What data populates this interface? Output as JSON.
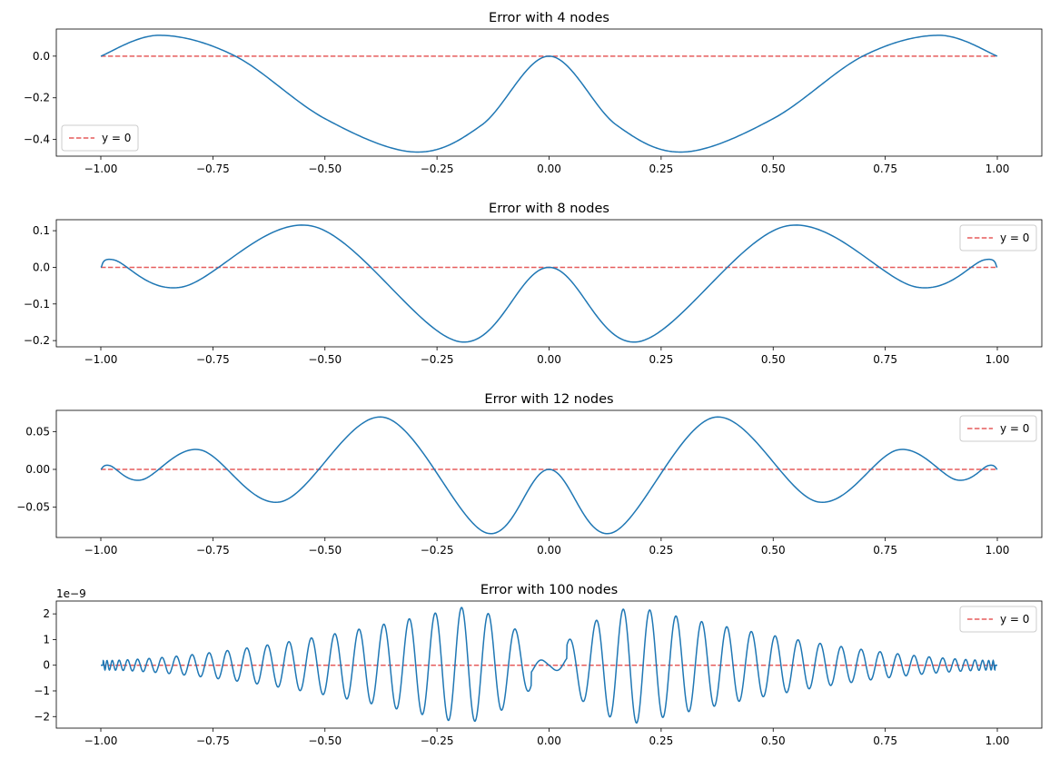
{
  "colors": {
    "error_line": "#1f77b4",
    "zero_line": "#e65c5c",
    "frame": "#000000",
    "legend_border": "#cccccc"
  },
  "legend_label": "y = 0",
  "chart_data": [
    {
      "type": "line",
      "title": "Error with 4 nodes",
      "n_nodes": 4,
      "xlim": [
        -1.0,
        1.0
      ],
      "ylim": [
        -0.48,
        0.13
      ],
      "xticks": [
        -1.0,
        -0.75,
        -0.5,
        -0.25,
        0.0,
        0.25,
        0.5,
        0.75,
        1.0
      ],
      "xticklabels": [
        "−1.00",
        "−0.75",
        "−0.50",
        "−0.25",
        "0.00",
        "0.25",
        "0.50",
        "0.75",
        "1.00"
      ],
      "yticks": [
        0.0,
        -0.2,
        -0.4
      ],
      "yticklabels": [
        "0.0",
        "−0.2",
        "−0.4"
      ],
      "offset_text": "",
      "series": [
        {
          "values_at_x": {
            "x": [
              -1.0,
              -0.87,
              -0.7,
              -0.5,
              -0.3,
              -0.15,
              0.0,
              0.15,
              0.3,
              0.5,
              0.7,
              0.87,
              1.0
            ],
            "y": [
              0.0,
              0.1,
              0.0,
              -0.3,
              -0.46,
              -0.33,
              0.0,
              -0.33,
              -0.46,
              -0.3,
              0.0,
              0.1,
              0.0
            ]
          }
        },
        {
          "name": "y = 0",
          "x": [
            -1.0,
            1.0
          ],
          "y": [
            0,
            0
          ],
          "style": "dashed"
        }
      ],
      "legend": "lower-left"
    },
    {
      "type": "line",
      "title": "Error with 8 nodes",
      "n_nodes": 8,
      "xlim": [
        -1.0,
        1.0
      ],
      "ylim": [
        -0.217,
        0.13
      ],
      "xticks": [
        -1.0,
        -0.75,
        -0.5,
        -0.25,
        0.0,
        0.25,
        0.5,
        0.75,
        1.0
      ],
      "xticklabels": [
        "−1.00",
        "−0.75",
        "−0.50",
        "−0.25",
        "0.00",
        "0.25",
        "0.50",
        "0.75",
        "1.00"
      ],
      "yticks": [
        0.1,
        0.0,
        -0.1,
        -0.2
      ],
      "yticklabels": [
        "0.1",
        "0.0",
        "−0.1",
        "−0.2"
      ],
      "offset_text": "",
      "series": [
        {
          "values_at_x": {
            "x": [
              -1.0,
              -0.97,
              -0.82,
              -0.53,
              -0.2,
              0.0,
              0.2,
              0.53,
              0.82,
              0.97,
              1.0
            ],
            "y": [
              0.0,
              0.02,
              -0.054,
              0.113,
              -0.203,
              0.0,
              -0.203,
              0.113,
              -0.054,
              0.02,
              0.0
            ]
          }
        },
        {
          "name": "y = 0",
          "x": [
            -1.0,
            1.0
          ],
          "y": [
            0,
            0
          ],
          "style": "dashed"
        }
      ],
      "legend": "upper-right"
    },
    {
      "type": "line",
      "title": "Error with 12 nodes",
      "n_nodes": 12,
      "xlim": [
        -1.0,
        1.0
      ],
      "ylim": [
        -0.09,
        0.078
      ],
      "xticks": [
        -1.0,
        -0.75,
        -0.5,
        -0.25,
        0.0,
        0.25,
        0.5,
        0.75,
        1.0
      ],
      "xticklabels": [
        "−1.00",
        "−0.75",
        "−0.50",
        "−0.25",
        "0.00",
        "0.25",
        "0.50",
        "0.75",
        "1.00"
      ],
      "yticks": [
        0.05,
        0.0,
        -0.05
      ],
      "yticklabels": [
        "0.05",
        "0.00",
        "−0.05"
      ],
      "offset_text": "",
      "series": [
        {
          "values_at_x": {
            "x": [
              -1.0,
              -0.98,
              -0.91,
              -0.78,
              -0.6,
              -0.37,
              -0.14,
              0.0,
              0.14,
              0.37,
              0.6,
              0.78,
              0.91,
              0.98,
              1.0
            ],
            "y": [
              0.0,
              0.005,
              -0.014,
              0.026,
              -0.043,
              0.069,
              -0.084,
              0.0,
              -0.084,
              0.069,
              -0.043,
              0.026,
              -0.014,
              0.005,
              0.0
            ]
          }
        },
        {
          "name": "y = 0",
          "x": [
            -1.0,
            1.0
          ],
          "y": [
            0,
            0
          ],
          "style": "dashed"
        }
      ],
      "legend": "upper-right"
    },
    {
      "type": "line",
      "title": "Error with 100 nodes",
      "n_nodes": 100,
      "xlim": [
        -1.0,
        1.0
      ],
      "ylim": [
        -2.45e-09,
        2.5e-09
      ],
      "xticks": [
        -1.0,
        -0.75,
        -0.5,
        -0.25,
        0.0,
        0.25,
        0.5,
        0.75,
        1.0
      ],
      "xticklabels": [
        "−1.00",
        "−0.75",
        "−0.50",
        "−0.25",
        "0.00",
        "0.25",
        "0.50",
        "0.75",
        "1.00"
      ],
      "yticks": [
        2e-09,
        1e-09,
        0.0,
        -1e-09,
        -2e-09
      ],
      "yticklabels": [
        "2",
        "1",
        "0",
        "−1",
        "−2"
      ],
      "offset_text": "1e−9",
      "series": [
        {
          "envelope_peak": 2.25e-09,
          "envelope_peak_x": 0.2
        },
        {
          "name": "y = 0",
          "x": [
            -1.0,
            1.0
          ],
          "y": [
            0,
            0
          ],
          "style": "dashed"
        }
      ],
      "legend": "upper-right"
    }
  ]
}
